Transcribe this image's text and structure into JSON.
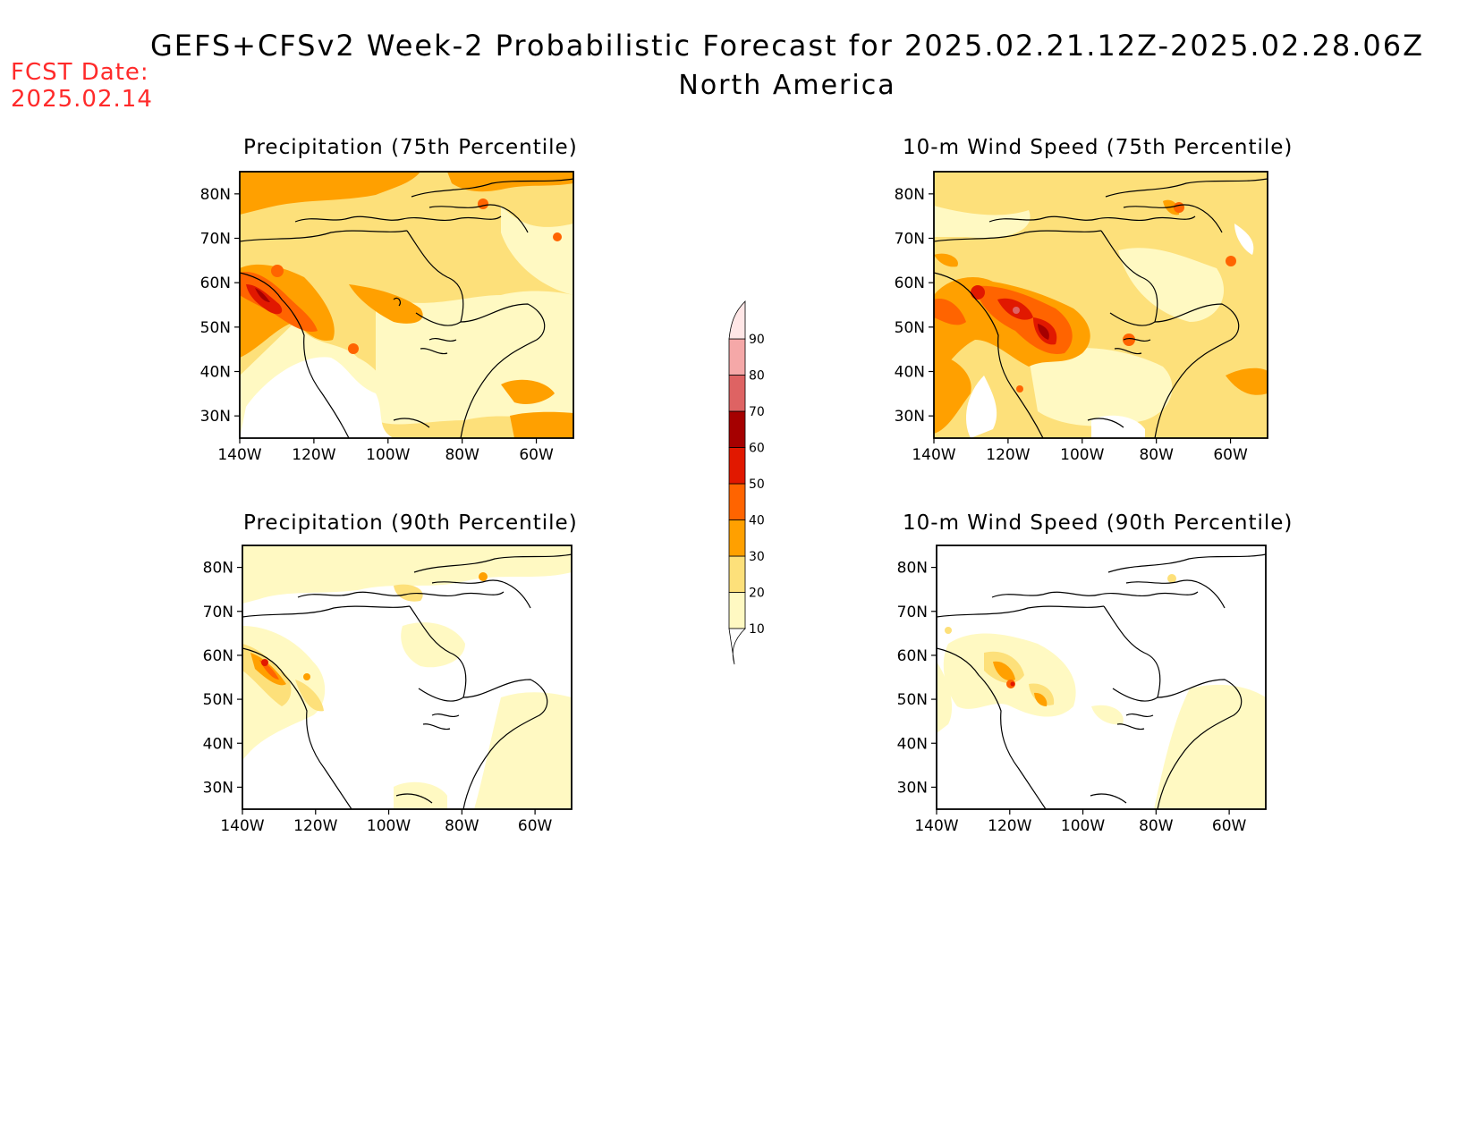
{
  "header": {
    "title": "GEFS+CFSv2 Week-2 Probabilistic Forecast for 2025.02.21.12Z-2025.02.28.06Z",
    "subtitle": "North America",
    "fcst_label": "FCST Date:",
    "fcst_date": "2025.02.14"
  },
  "axes": {
    "lat_labels": [
      "80N",
      "70N",
      "60N",
      "50N",
      "40N",
      "30N"
    ],
    "lon_labels": [
      "140W",
      "120W",
      "100W",
      "80W",
      "60W"
    ]
  },
  "colors": {
    "levels": [
      {
        "min": 10,
        "color": "#fff9c2"
      },
      {
        "min": 20,
        "color": "#fde07a"
      },
      {
        "min": 30,
        "color": "#ffa000"
      },
      {
        "min": 40,
        "color": "#ff6400"
      },
      {
        "min": 50,
        "color": "#e11800"
      },
      {
        "min": 60,
        "color": "#a50000"
      },
      {
        "min": 70,
        "color": "#de6363"
      },
      {
        "min": 80,
        "color": "#f5a8a8"
      },
      {
        "min": 90,
        "color": "#ffe6e6"
      }
    ]
  },
  "colorbar": {
    "labels": [
      "90",
      "80",
      "70",
      "60",
      "50",
      "40",
      "30",
      "20",
      "10"
    ]
  },
  "panels": [
    {
      "id": "precip75",
      "title": "Precipitation (75th Percentile)"
    },
    {
      "id": "wind75",
      "title": "10-m Wind Speed (75th Percentile)"
    },
    {
      "id": "precip90",
      "title": "Precipitation (90th Percentile)"
    },
    {
      "id": "wind90",
      "title": "10-m Wind Speed (90th Percentile)"
    }
  ]
}
